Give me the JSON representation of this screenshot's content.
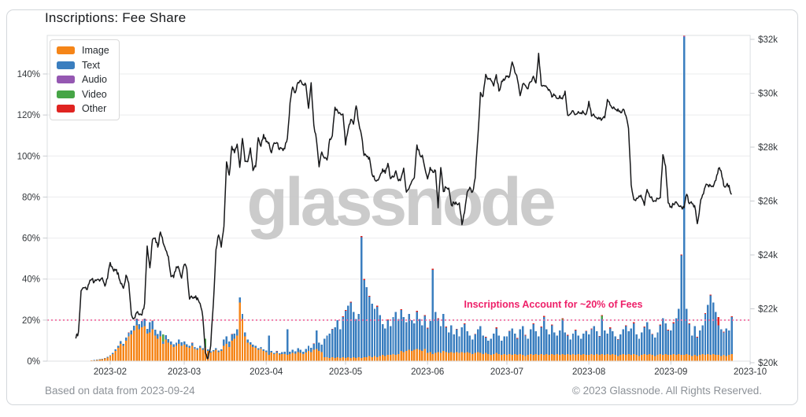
{
  "header": {
    "title": "Inscriptions: Fee Share"
  },
  "watermark": "glassnode",
  "annotation": {
    "text": "Inscriptions Account for ~20% of Fees"
  },
  "footer": {
    "left": "Based on data from 2023-09-24",
    "right": "© 2023 Glassnode. All Rights Reserved."
  },
  "legend": [
    {
      "label": "Image",
      "color": "#f58518"
    },
    {
      "label": "Text",
      "color": "#3a7ebf"
    },
    {
      "label": "Audio",
      "color": "#9558b2"
    },
    {
      "label": "Video",
      "color": "#46a546"
    },
    {
      "label": "Other",
      "color": "#e02421"
    }
  ],
  "colors": {
    "price_line": "#17181a",
    "threshold_line": "#f2659a",
    "annotation_text": "#ee2069",
    "grid": "#ebecee",
    "plot_border": "#dcdfe2",
    "tick": "#c9ccd0",
    "tick_text": "#33373b",
    "watermark": "#c7c7c7"
  },
  "chart_data": {
    "type": "mixed",
    "title": "Inscriptions: Fee Share",
    "subtype": "daily stacked bars (fee share %) + price line (USD, right axis)",
    "start_date": "2023-01-19",
    "threshold_line_pct": 20,
    "left_axis": {
      "unit": "%",
      "ticks": [
        {
          "label": "0%",
          "v": 0
        },
        {
          "label": "20%",
          "v": 20
        },
        {
          "label": "40%",
          "v": 40
        },
        {
          "label": "60%",
          "v": 60
        },
        {
          "label": "80%",
          "v": 80
        },
        {
          "label": "100%",
          "v": 100
        },
        {
          "label": "120%",
          "v": 120
        },
        {
          "label": "140%",
          "v": 140
        }
      ]
    },
    "right_axis": {
      "unit": "USD",
      "ticks": [
        {
          "label": "$20k",
          "v": 20000
        },
        {
          "label": "$22k",
          "v": 22000
        },
        {
          "label": "$24k",
          "v": 24000
        },
        {
          "label": "$26k",
          "v": 26000
        },
        {
          "label": "$28k",
          "v": 28000
        },
        {
          "label": "$30k",
          "v": 30000
        },
        {
          "label": "$32k",
          "v": 32000
        }
      ]
    },
    "x_axis": {
      "ticks": [
        {
          "label": "2023-02",
          "d": 13
        },
        {
          "label": "2023-03",
          "d": 41
        },
        {
          "label": "2023-04",
          "d": 72
        },
        {
          "label": "2023-05",
          "d": 102
        },
        {
          "label": "2023-06",
          "d": 133
        },
        {
          "label": "2023-07",
          "d": 163
        },
        {
          "label": "2023-08",
          "d": 194
        },
        {
          "label": "2023-09",
          "d": 225
        },
        {
          "label": "2023-10",
          "d": 255
        }
      ]
    },
    "bar_stack_order": [
      "Image",
      "Text",
      "Audio",
      "Video",
      "Other"
    ],
    "bars_pct_per_day": [
      [
        0
      ],
      [
        0
      ],
      [
        0
      ],
      [
        0
      ],
      [
        0
      ],
      [
        0
      ],
      [
        0.3
      ],
      [
        0.4,
        0.1
      ],
      [
        0.6,
        0.1
      ],
      [
        0.8,
        0.1
      ],
      [
        1,
        0.2
      ],
      [
        1.4,
        0.2
      ],
      [
        1.8,
        0.3
      ],
      [
        2.5,
        0.3
      ],
      [
        3.5,
        0.5
      ],
      [
        5,
        0.7
      ],
      [
        6.5,
        0.9
      ],
      [
        8.5,
        1.2
      ],
      [
        7.5,
        1
      ],
      [
        10,
        1.5
      ],
      [
        12,
        1.8,
        0,
        0,
        0.2
      ],
      [
        13,
        2
      ],
      [
        15,
        2.2
      ],
      [
        17.5,
        3,
        0,
        0,
        0.3
      ],
      [
        15.5,
        2.5
      ],
      [
        16.5,
        2.8,
        0.2
      ],
      [
        17,
        3.5,
        0,
        0,
        0.3
      ],
      [
        13.5,
        2.2
      ],
      [
        14,
        5
      ],
      [
        15.5,
        4,
        0,
        0,
        0.3
      ],
      [
        12.5,
        2.8
      ],
      [
        11,
        2.2
      ],
      [
        12,
        2.8
      ],
      [
        8.5,
        1,
        0,
        3.5
      ],
      [
        10.5,
        2.2
      ],
      [
        9,
        1.8
      ],
      [
        8,
        1.5
      ],
      [
        7,
        1.2
      ],
      [
        7.5,
        1.5
      ],
      [
        8.5,
        2
      ],
      [
        7.5,
        1.8
      ],
      [
        8,
        1.5
      ],
      [
        7,
        1.2
      ],
      [
        6.5,
        1
      ],
      [
        7.5,
        1.3,
        0,
        0,
        0.2
      ],
      [
        6,
        1
      ],
      [
        5.5,
        0.8
      ],
      [
        6.5,
        1
      ],
      [
        5.5,
        0.8
      ],
      [
        6.5,
        0.5,
        0,
        4
      ],
      [
        5,
        0.7
      ],
      [
        4.2,
        0.6
      ],
      [
        4.8,
        0.6
      ],
      [
        5.5,
        0.8
      ],
      [
        4.5,
        0.6
      ],
      [
        5,
        0.7
      ],
      [
        7.5,
        3
      ],
      [
        8.5,
        3.5
      ],
      [
        7,
        2.5
      ],
      [
        10,
        3,
        0,
        0,
        0.2
      ],
      [
        11,
        2.5
      ],
      [
        12.5,
        3
      ],
      [
        28.5,
        2.5
      ],
      [
        20.5,
        2.5
      ],
      [
        12,
        2
      ],
      [
        9,
        1.5
      ],
      [
        8,
        1.3
      ],
      [
        7,
        1.1
      ],
      [
        6.5,
        1
      ],
      [
        5.5,
        0.9
      ],
      [
        6,
        1
      ],
      [
        5,
        0.8
      ],
      [
        4.5,
        0.7
      ],
      [
        3,
        9.5
      ],
      [
        4.2,
        0.8
      ],
      [
        3.5,
        0.6
      ],
      [
        4,
        0.8,
        0,
        0,
        0.2
      ],
      [
        3.2,
        0.6
      ],
      [
        3.5,
        1
      ],
      [
        3.5,
        1.2
      ],
      [
        3,
        12.5
      ],
      [
        3.5,
        1.2
      ],
      [
        4,
        1.5
      ],
      [
        3.6,
        1.2
      ],
      [
        4.5,
        1.8
      ],
      [
        4,
        1.5
      ],
      [
        3.5,
        1.2
      ],
      [
        4.2,
        1.8
      ],
      [
        5,
        2.5
      ],
      [
        4.5,
        2
      ],
      [
        5.5,
        3,
        0,
        0,
        0.2
      ],
      [
        6,
        9
      ],
      [
        5,
        4
      ],
      [
        4.5,
        3.5
      ],
      [
        2,
        9
      ],
      [
        2,
        10.5
      ],
      [
        1.5,
        12
      ],
      [
        2,
        13.5,
        0,
        0,
        0.3
      ],
      [
        1.5,
        15
      ],
      [
        2,
        18
      ],
      [
        1.5,
        14
      ],
      [
        2,
        19.5,
        0,
        0,
        0.3
      ],
      [
        1.5,
        23,
        0,
        0,
        0.4
      ],
      [
        2,
        25
      ],
      [
        1.5,
        27,
        0,
        0,
        0.4
      ],
      [
        2,
        22
      ],
      [
        1.5,
        19
      ],
      [
        2,
        21
      ],
      [
        1.5,
        59,
        0,
        0,
        0.5
      ],
      [
        2,
        37.5,
        0,
        0,
        0.5
      ],
      [
        2,
        34
      ],
      [
        2.5,
        29,
        0,
        0,
        0.4
      ],
      [
        2,
        26
      ],
      [
        2.5,
        23
      ],
      [
        2,
        24.5,
        0,
        0,
        0.5
      ],
      [
        2.5,
        20
      ],
      [
        3,
        15
      ],
      [
        2.5,
        13.5
      ],
      [
        3,
        17,
        0,
        0,
        0.4
      ],
      [
        3,
        14
      ],
      [
        3.5,
        18
      ],
      [
        3,
        21
      ],
      [
        3.5,
        17
      ],
      [
        5,
        20,
        0,
        0,
        0.4
      ],
      [
        4.5,
        17
      ],
      [
        5,
        14
      ],
      [
        5.5,
        17.5
      ],
      [
        5,
        15
      ],
      [
        5.5,
        13
      ],
      [
        6,
        18,
        0,
        0,
        0.5
      ],
      [
        5.5,
        15
      ],
      [
        5,
        12.5
      ],
      [
        6,
        16,
        0,
        0,
        0.4
      ],
      [
        4,
        12,
        0,
        0,
        0.3
      ],
      [
        4.5,
        15
      ],
      [
        3.5,
        41,
        0,
        0,
        0.5
      ],
      [
        4,
        20
      ],
      [
        4.5,
        16,
        0,
        0,
        0.4
      ],
      [
        4,
        13
      ],
      [
        5,
        18
      ],
      [
        4.5,
        12,
        0,
        0,
        0.4
      ],
      [
        4,
        10
      ],
      [
        4.5,
        13
      ],
      [
        4,
        9
      ],
      [
        4.5,
        11,
        0,
        0,
        0.3
      ],
      [
        4,
        8
      ],
      [
        4.5,
        12
      ],
      [
        4,
        14,
        0,
        0,
        0.4
      ],
      [
        4.5,
        10
      ],
      [
        4,
        8.5
      ],
      [
        3.5,
        7
      ],
      [
        4,
        9,
        0,
        0,
        0.3
      ],
      [
        4.5,
        11
      ],
      [
        4,
        13
      ],
      [
        3.5,
        9
      ],
      [
        4,
        7.5,
        0,
        0,
        0.3
      ],
      [
        3.5,
        6.5
      ],
      [
        3,
        8
      ],
      [
        3.5,
        10
      ],
      [
        4,
        12,
        0,
        0,
        0.4
      ],
      [
        3.5,
        9
      ],
      [
        3,
        7
      ],
      [
        3.5,
        8.5
      ],
      [
        3,
        9
      ],
      [
        3.5,
        11,
        0,
        0,
        0.3
      ],
      [
        3,
        13
      ],
      [
        3.5,
        10
      ],
      [
        3,
        8,
        0,
        0,
        0.3
      ],
      [
        3.5,
        12
      ],
      [
        3,
        14
      ],
      [
        2.5,
        10,
        0,
        0,
        0.3
      ],
      [
        3,
        8
      ],
      [
        3.5,
        12
      ],
      [
        3,
        15,
        0,
        0,
        0.4
      ],
      [
        3.5,
        11
      ],
      [
        3,
        9
      ],
      [
        3.5,
        13,
        0,
        0,
        0.4
      ],
      [
        3,
        18.5,
        0,
        0,
        0.5
      ],
      [
        3.5,
        12
      ],
      [
        3,
        10
      ],
      [
        3.5,
        14,
        0,
        0,
        0.4
      ],
      [
        3,
        11
      ],
      [
        3.5,
        9
      ],
      [
        3,
        12
      ],
      [
        3.5,
        16.5,
        0,
        0.5,
        0.5
      ],
      [
        3,
        11
      ],
      [
        3.5,
        9,
        0,
        0,
        0.3
      ],
      [
        3,
        7.5
      ],
      [
        3.5,
        10
      ],
      [
        3,
        12,
        0,
        0,
        0.3
      ],
      [
        3.5,
        9
      ],
      [
        3,
        8
      ],
      [
        3.5,
        10
      ],
      [
        3,
        11.5,
        0,
        0,
        0.3
      ],
      [
        3,
        10
      ],
      [
        3.5,
        12,
        0,
        0,
        0.4
      ],
      [
        3,
        14
      ],
      [
        3.5,
        11
      ],
      [
        3,
        9,
        0,
        0,
        0.3
      ],
      [
        3.5,
        17,
        0,
        1.5,
        0.5
      ],
      [
        3,
        12
      ],
      [
        3.5,
        10
      ],
      [
        3,
        13,
        0,
        0,
        0.4
      ],
      [
        3.5,
        11
      ],
      [
        3,
        9
      ],
      [
        2.5,
        8,
        0,
        0,
        0.3
      ],
      [
        3,
        10
      ],
      [
        3.5,
        12
      ],
      [
        3,
        14,
        0,
        0,
        0.4
      ],
      [
        3.5,
        11
      ],
      [
        3,
        13
      ],
      [
        3.5,
        15,
        0,
        0,
        0.4
      ],
      [
        3,
        10
      ],
      [
        2.5,
        8.5
      ],
      [
        3,
        11
      ],
      [
        3.5,
        13,
        0,
        0,
        0.4
      ],
      [
        3,
        16
      ],
      [
        3.5,
        12
      ],
      [
        3,
        10,
        0,
        0,
        0.3
      ],
      [
        2.5,
        9
      ],
      [
        3,
        11
      ],
      [
        3.5,
        14,
        0,
        0,
        0.4
      ],
      [
        3,
        18
      ],
      [
        3.5,
        15
      ],
      [
        3,
        12,
        0,
        0,
        0.3
      ],
      [
        3,
        12
      ],
      [
        3.5,
        15,
        0,
        0,
        0.4
      ],
      [
        3,
        18
      ],
      [
        3.5,
        22
      ],
      [
        3,
        48.5,
        0,
        0,
        0.5
      ],
      [
        3,
        155,
        0.5,
        0,
        1
      ],
      [
        3.5,
        22
      ],
      [
        3,
        15,
        0,
        0,
        0.4
      ],
      [
        2.5,
        10
      ],
      [
        3,
        14
      ],
      [
        2.5,
        9,
        0,
        0,
        0.3
      ],
      [
        3,
        12
      ],
      [
        3.5,
        14
      ],
      [
        3,
        20,
        0,
        0,
        0.4
      ],
      [
        3.5,
        24
      ],
      [
        3,
        29,
        0,
        0,
        0.5
      ],
      [
        3.5,
        25
      ],
      [
        3,
        21
      ],
      [
        3,
        14.5,
        0,
        0,
        4
      ],
      [
        2.5,
        13
      ],
      [
        3,
        11,
        0,
        0,
        0.3
      ],
      [
        2.5,
        13.5
      ],
      [
        3,
        12
      ],
      [
        3.5,
        18,
        0,
        0,
        0.4
      ]
    ],
    "price_usd_per_day": [
      20900,
      21150,
      22670,
      22780,
      22720,
      22930,
      23100,
      23000,
      23080,
      23030,
      23150,
      22840,
      23130,
      23720,
      23490,
      23430,
      23330,
      22930,
      22760,
      23250,
      22960,
      21790,
      21650,
      21860,
      21780,
      21770,
      22200,
      24330,
      23520,
      24570,
      24630,
      24290,
      24850,
      24450,
      24180,
      23940,
      23190,
      23160,
      23560,
      23490,
      23140,
      23640,
      23470,
      22360,
      22430,
      22410,
      22410,
      22200,
      21710,
      20370,
      20160,
      20630,
      22160,
      24200,
      24740,
      24290,
      25060,
      27450,
      26960,
      28030,
      27790,
      28110,
      27250,
      28320,
      27470,
      27460,
      27970,
      27130,
      27270,
      28350,
      28030,
      28470,
      28200,
      28170,
      27790,
      28160,
      28170,
      27910,
      27950,
      27940,
      28330,
      29640,
      30230,
      30020,
      30400,
      30480,
      30320,
      30310,
      29440,
      30390,
      28820,
      28250,
      27270,
      27820,
      27590,
      27520,
      28300,
      28420,
      29480,
      29340,
      29250,
      29230,
      28080,
      28680,
      29030,
      28850,
      29530,
      28900,
      28450,
      27690,
      27650,
      27620,
      27000,
      26800,
      26780,
      26930,
      27190,
      27030,
      27400,
      26830,
      26890,
      27120,
      26750,
      26860,
      27220,
      26330,
      26470,
      26720,
      26870,
      28080,
      27740,
      27700,
      27220,
      26820,
      27250,
      27070,
      27120,
      25750,
      27240,
      26350,
      26500,
      26480,
      25850,
      25940,
      25900,
      25930,
      25120,
      25580,
      26330,
      26510,
      26340,
      26850,
      28320,
      30030,
      29890,
      30700,
      30550,
      30480,
      30270,
      30690,
      30080,
      30450,
      30480,
      30620,
      30620,
      31160,
      30780,
      30510,
      29910,
      30340,
      30290,
      30170,
      30420,
      30630,
      30380,
      31480,
      30290,
      30290,
      30230,
      30140,
      29860,
      29920,
      29810,
      29910,
      29790,
      30080,
      29180,
      29230,
      29350,
      29210,
      29320,
      29280,
      29280,
      29230,
      29700,
      29150,
      29180,
      29080,
      29050,
      29040,
      29090,
      29770,
      29570,
      29430,
      29400,
      29420,
      29280,
      29410,
      29170,
      28700,
      26600,
      26050,
      26100,
      26190,
      26120,
      25840,
      26430,
      26160,
      26050,
      26010,
      26090,
      26120,
      27720,
      27300,
      25930,
      25800,
      25870,
      25970,
      25810,
      25780,
      25750,
      26250,
      25900,
      25900,
      25830,
      25160,
      25840,
      26230,
      26530,
      26600,
      26570,
      26530,
      26760,
      27210,
      27120,
      26570,
      26580,
      26580,
      26250
    ]
  }
}
